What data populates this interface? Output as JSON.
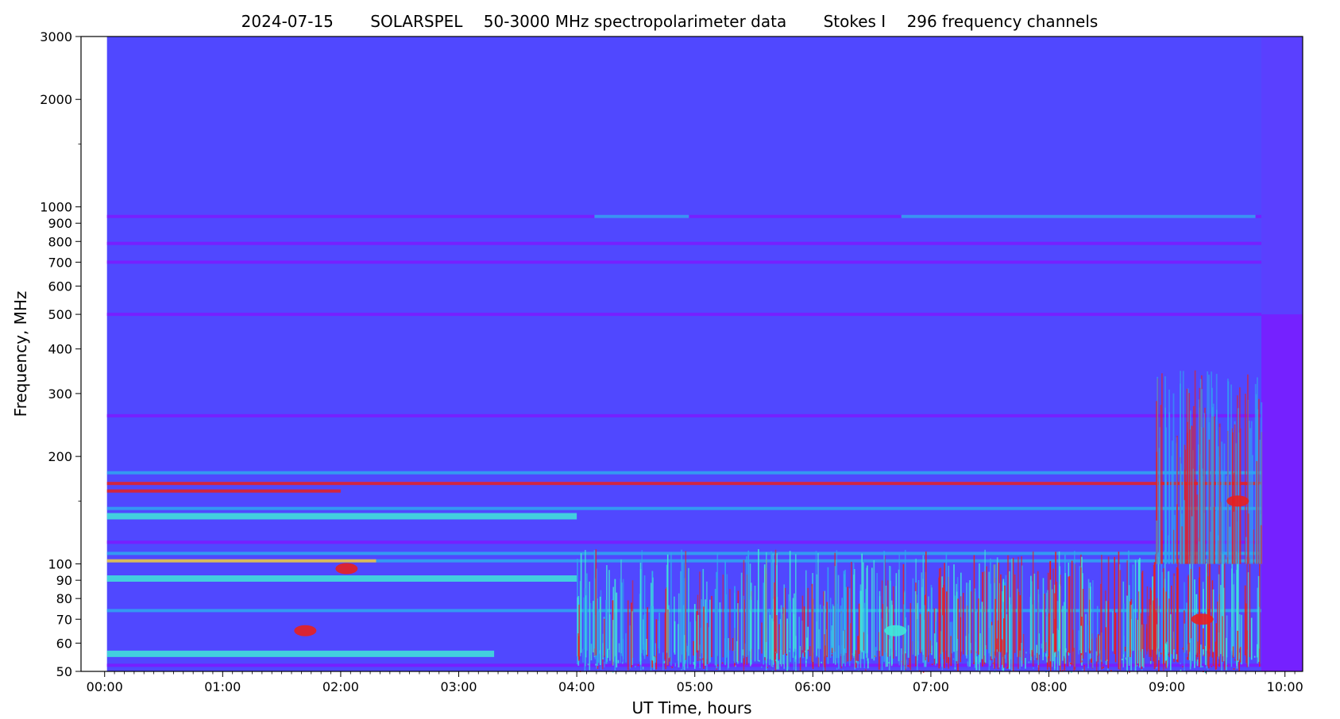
{
  "title": {
    "date": "2024-07-15",
    "instrument": "SOLARSPEL",
    "description": "50-3000 MHz spectropolarimeter data",
    "stokes": "Stokes I",
    "channels": "296 frequency channels"
  },
  "chart_data": {
    "type": "heatmap",
    "xlabel": "UT Time, hours",
    "ylabel": "Frequency, MHz",
    "x_scale": "linear",
    "y_scale": "log",
    "xlim_hours": [
      -0.2,
      10.15
    ],
    "ylim_mhz": [
      50,
      3000
    ],
    "data_time_range_hours": [
      0.02,
      9.8
    ],
    "x_ticks": [
      {
        "hours": 0,
        "label": "00:00"
      },
      {
        "hours": 1,
        "label": "01:00"
      },
      {
        "hours": 2,
        "label": "02:00"
      },
      {
        "hours": 3,
        "label": "03:00"
      },
      {
        "hours": 4,
        "label": "04:00"
      },
      {
        "hours": 5,
        "label": "05:00"
      },
      {
        "hours": 6,
        "label": "06:00"
      },
      {
        "hours": 7,
        "label": "07:00"
      },
      {
        "hours": 8,
        "label": "08:00"
      },
      {
        "hours": 9,
        "label": "09:00"
      },
      {
        "hours": 10,
        "label": "10:00"
      }
    ],
    "y_ticks": [
      {
        "mhz": 50,
        "label": "50"
      },
      {
        "mhz": 60,
        "label": "60"
      },
      {
        "mhz": 70,
        "label": "70"
      },
      {
        "mhz": 80,
        "label": "80"
      },
      {
        "mhz": 90,
        "label": "90"
      },
      {
        "mhz": 100,
        "label": "100"
      },
      {
        "mhz": 200,
        "label": "200"
      },
      {
        "mhz": 300,
        "label": "300"
      },
      {
        "mhz": 400,
        "label": "400"
      },
      {
        "mhz": 500,
        "label": "500"
      },
      {
        "mhz": 600,
        "label": "600"
      },
      {
        "mhz": 700,
        "label": "700"
      },
      {
        "mhz": 800,
        "label": "800"
      },
      {
        "mhz": 900,
        "label": "900"
      },
      {
        "mhz": 1000,
        "label": "1000"
      },
      {
        "mhz": 2000,
        "label": "2000"
      },
      {
        "mhz": 3000,
        "label": "3000"
      }
    ],
    "y_minor_ticks_mhz": [
      150,
      1500
    ],
    "colormap": {
      "background": "#5048FF",
      "low": "#7A1CFF",
      "mid": "#2FA8F0",
      "high": "#40E8D8",
      "peak": "#E8201E",
      "warm": "#F0D040"
    },
    "bands": [
      {
        "mhz": 940,
        "t0": 0.02,
        "t1": 9.8,
        "level": "low"
      },
      {
        "mhz": 940,
        "t0": 4.15,
        "t1": 4.95,
        "level": "mid"
      },
      {
        "mhz": 940,
        "t0": 6.75,
        "t1": 9.75,
        "level": "mid"
      },
      {
        "mhz": 790,
        "t0": 0.02,
        "t1": 9.8,
        "level": "low"
      },
      {
        "mhz": 700,
        "t0": 0.02,
        "t1": 9.8,
        "level": "low"
      },
      {
        "mhz": 500,
        "t0": 0.02,
        "t1": 9.8,
        "level": "low"
      },
      {
        "mhz": 260,
        "t0": 0.02,
        "t1": 9.8,
        "level": "low"
      },
      {
        "mhz": 180,
        "t0": 0.02,
        "t1": 9.8,
        "level": "mid"
      },
      {
        "mhz": 168,
        "t0": 0.02,
        "t1": 9.8,
        "level": "peak"
      },
      {
        "mhz": 160,
        "t0": 0.02,
        "t1": 2.0,
        "level": "peak"
      },
      {
        "mhz": 143,
        "t0": 0.02,
        "t1": 9.8,
        "level": "mid"
      },
      {
        "mhz": 136,
        "t0": 0.02,
        "t1": 4.0,
        "level": "high"
      },
      {
        "mhz": 115,
        "t0": 0.02,
        "t1": 9.8,
        "level": "low"
      },
      {
        "mhz": 107,
        "t0": 0.02,
        "t1": 9.8,
        "level": "mid"
      },
      {
        "mhz": 102,
        "t0": 0.02,
        "t1": 2.3,
        "level": "warm"
      },
      {
        "mhz": 102,
        "t0": 2.3,
        "t1": 9.8,
        "level": "mid"
      },
      {
        "mhz": 91,
        "t0": 0.02,
        "t1": 4.0,
        "level": "high"
      },
      {
        "mhz": 74,
        "t0": 0.02,
        "t1": 9.8,
        "level": "mid"
      },
      {
        "mhz": 56,
        "t0": 0.02,
        "t1": 3.3,
        "level": "high"
      },
      {
        "mhz": 52,
        "t0": 0.02,
        "t1": 9.8,
        "level": "low"
      }
    ],
    "bursts": [
      {
        "t": 2.05,
        "mhz": 97,
        "level": "peak"
      },
      {
        "t": 1.7,
        "mhz": 65,
        "level": "peak"
      },
      {
        "t": 6.7,
        "mhz": 65,
        "level": "high"
      },
      {
        "t": 9.3,
        "mhz": 70,
        "level": "peak"
      },
      {
        "t": 9.6,
        "mhz": 150,
        "level": "peak"
      }
    ]
  }
}
